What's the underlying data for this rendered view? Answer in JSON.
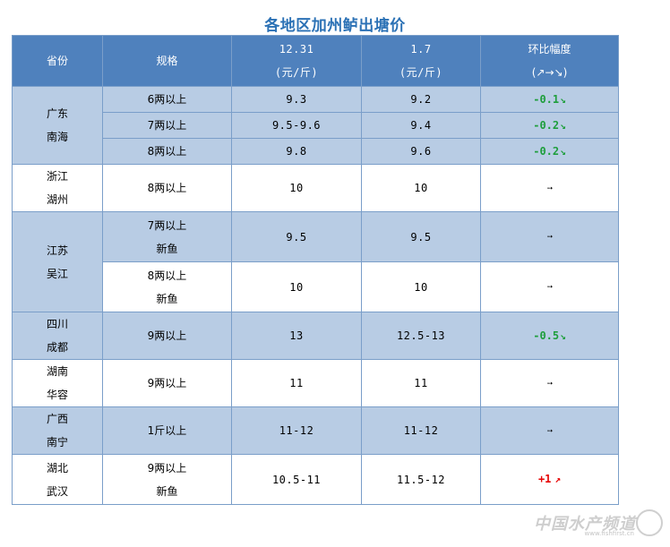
{
  "title": "各地区加州鲈出塘价",
  "header": {
    "province": "省份",
    "spec": "规格",
    "date1": [
      "12.31",
      "(元/斤)"
    ],
    "date2": [
      "1.7",
      "(元/斤)"
    ],
    "change": [
      "环比幅度",
      "(↗→↘)"
    ]
  },
  "colors": {
    "header_bg": "#4f81bd",
    "band_bg": "#b8cce4",
    "title": "#2b71b5",
    "down": "#1e9e3c",
    "up": "#e60000"
  },
  "rows": [
    {
      "province": [
        "广东",
        "南海"
      ],
      "band": true,
      "items": [
        {
          "spec": [
            "6两以上"
          ],
          "p1": "9.3",
          "p2": "9.2",
          "change": "-0.1",
          "dir": "down"
        },
        {
          "spec": [
            "7两以上"
          ],
          "p1": "9.5-9.6",
          "p2": "9.4",
          "change": "-0.2",
          "dir": "down"
        },
        {
          "spec": [
            "8两以上"
          ],
          "p1": "9.8",
          "p2": "9.6",
          "change": "-0.2",
          "dir": "down"
        }
      ]
    },
    {
      "province": [
        "浙江",
        "湖州"
      ],
      "band": false,
      "items": [
        {
          "spec": [
            "8两以上"
          ],
          "p1": "10",
          "p2": "10",
          "change": "",
          "dir": "flat"
        }
      ]
    },
    {
      "province": [
        "江苏",
        "吴江"
      ],
      "band": true,
      "items": [
        {
          "spec": [
            "7两以上",
            "新鱼"
          ],
          "p1": "9.5",
          "p2": "9.5",
          "change": "",
          "dir": "flat"
        },
        {
          "spec": [
            "8两以上",
            "新鱼"
          ],
          "p1": "10",
          "p2": "10",
          "change": "",
          "dir": "flat",
          "band": false
        }
      ]
    },
    {
      "province": [
        "四川",
        "成都"
      ],
      "band": true,
      "items": [
        {
          "spec": [
            "9两以上"
          ],
          "p1": "13",
          "p2": "12.5-13",
          "change": "-0.5",
          "dir": "down"
        }
      ]
    },
    {
      "province": [
        "湖南",
        "华容"
      ],
      "band": false,
      "items": [
        {
          "spec": [
            "9两以上"
          ],
          "p1": "11",
          "p2": "11",
          "change": "",
          "dir": "flat"
        }
      ]
    },
    {
      "province": [
        "广西",
        "南宁"
      ],
      "band": true,
      "items": [
        {
          "spec": [
            "1斤以上"
          ],
          "p1": "11-12",
          "p2": "11-12",
          "change": "",
          "dir": "flat"
        }
      ]
    },
    {
      "province": [
        "湖北",
        "武汉"
      ],
      "band": false,
      "items": [
        {
          "spec": [
            "9两以上",
            "新鱼"
          ],
          "p1": "10.5-11",
          "p2": "11.5-12",
          "change": "+1",
          "dir": "up"
        }
      ]
    }
  ],
  "arrows": {
    "down": "↘",
    "up": "↗",
    "flat": "➙"
  },
  "watermark": {
    "text": "中国水产频道",
    "sub": "www.fishfirst.cn"
  }
}
